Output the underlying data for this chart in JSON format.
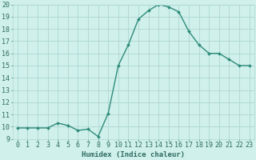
{
  "x": [
    0,
    1,
    2,
    3,
    4,
    5,
    6,
    7,
    8,
    9,
    10,
    11,
    12,
    13,
    14,
    15,
    16,
    17,
    18,
    19,
    20,
    21,
    22,
    23
  ],
  "y": [
    9.9,
    9.9,
    9.9,
    9.9,
    10.3,
    10.1,
    9.7,
    9.8,
    9.2,
    11.1,
    15.0,
    16.7,
    18.8,
    19.5,
    20.0,
    19.8,
    19.4,
    17.8,
    16.7,
    16.0,
    16.0,
    15.5,
    15.0,
    15.0
  ],
  "line_color": "#2e8b7a",
  "marker": "D",
  "marker_size": 2.0,
  "linewidth": 1.0,
  "bg_color": "#cff0eb",
  "grid_color": "#aed8d2",
  "xlabel": "Humidex (Indice chaleur)",
  "xlabel_fontsize": 6.5,
  "tick_fontsize": 6.0,
  "ylim": [
    9,
    20
  ],
  "xlim": [
    -0.5,
    23.5
  ],
  "yticks": [
    9,
    10,
    11,
    12,
    13,
    14,
    15,
    16,
    17,
    18,
    19,
    20
  ],
  "xticks": [
    0,
    1,
    2,
    3,
    4,
    5,
    6,
    7,
    8,
    9,
    10,
    11,
    12,
    13,
    14,
    15,
    16,
    17,
    18,
    19,
    20,
    21,
    22,
    23
  ],
  "xtick_labels": [
    "0",
    "1",
    "2",
    "3",
    "4",
    "5",
    "6",
    "7",
    "8",
    "9",
    "10",
    "11",
    "12",
    "13",
    "14",
    "15",
    "16",
    "17",
    "18",
    "19",
    "20",
    "21",
    "22",
    "23"
  ],
  "text_color": "#2e6b60"
}
